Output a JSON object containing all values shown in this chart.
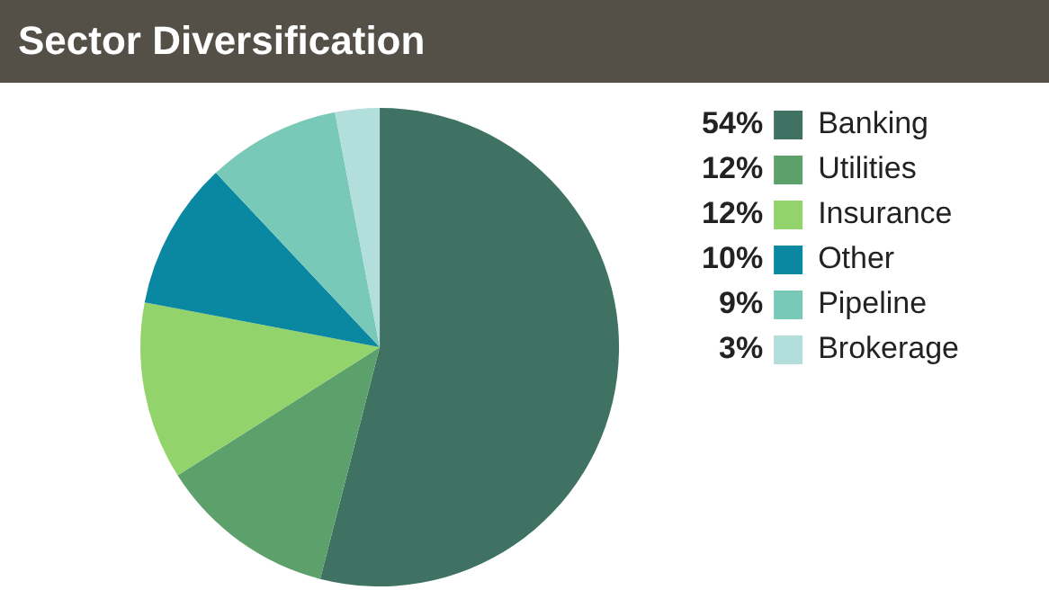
{
  "chart_data": {
    "type": "pie",
    "title": "Sector Diversification",
    "categories": [
      "Banking",
      "Utilities",
      "Insurance",
      "Other",
      "Pipeline",
      "Brokerage"
    ],
    "values": [
      54,
      12,
      12,
      10,
      9,
      3
    ],
    "value_labels": [
      "54%",
      "12%",
      "12%",
      "10%",
      "9%",
      "3%"
    ],
    "colors": [
      "#3f7262",
      "#5ca06c",
      "#93d36c",
      "#0b88a1",
      "#79c9b9",
      "#b2dedb"
    ],
    "legend": "right"
  }
}
